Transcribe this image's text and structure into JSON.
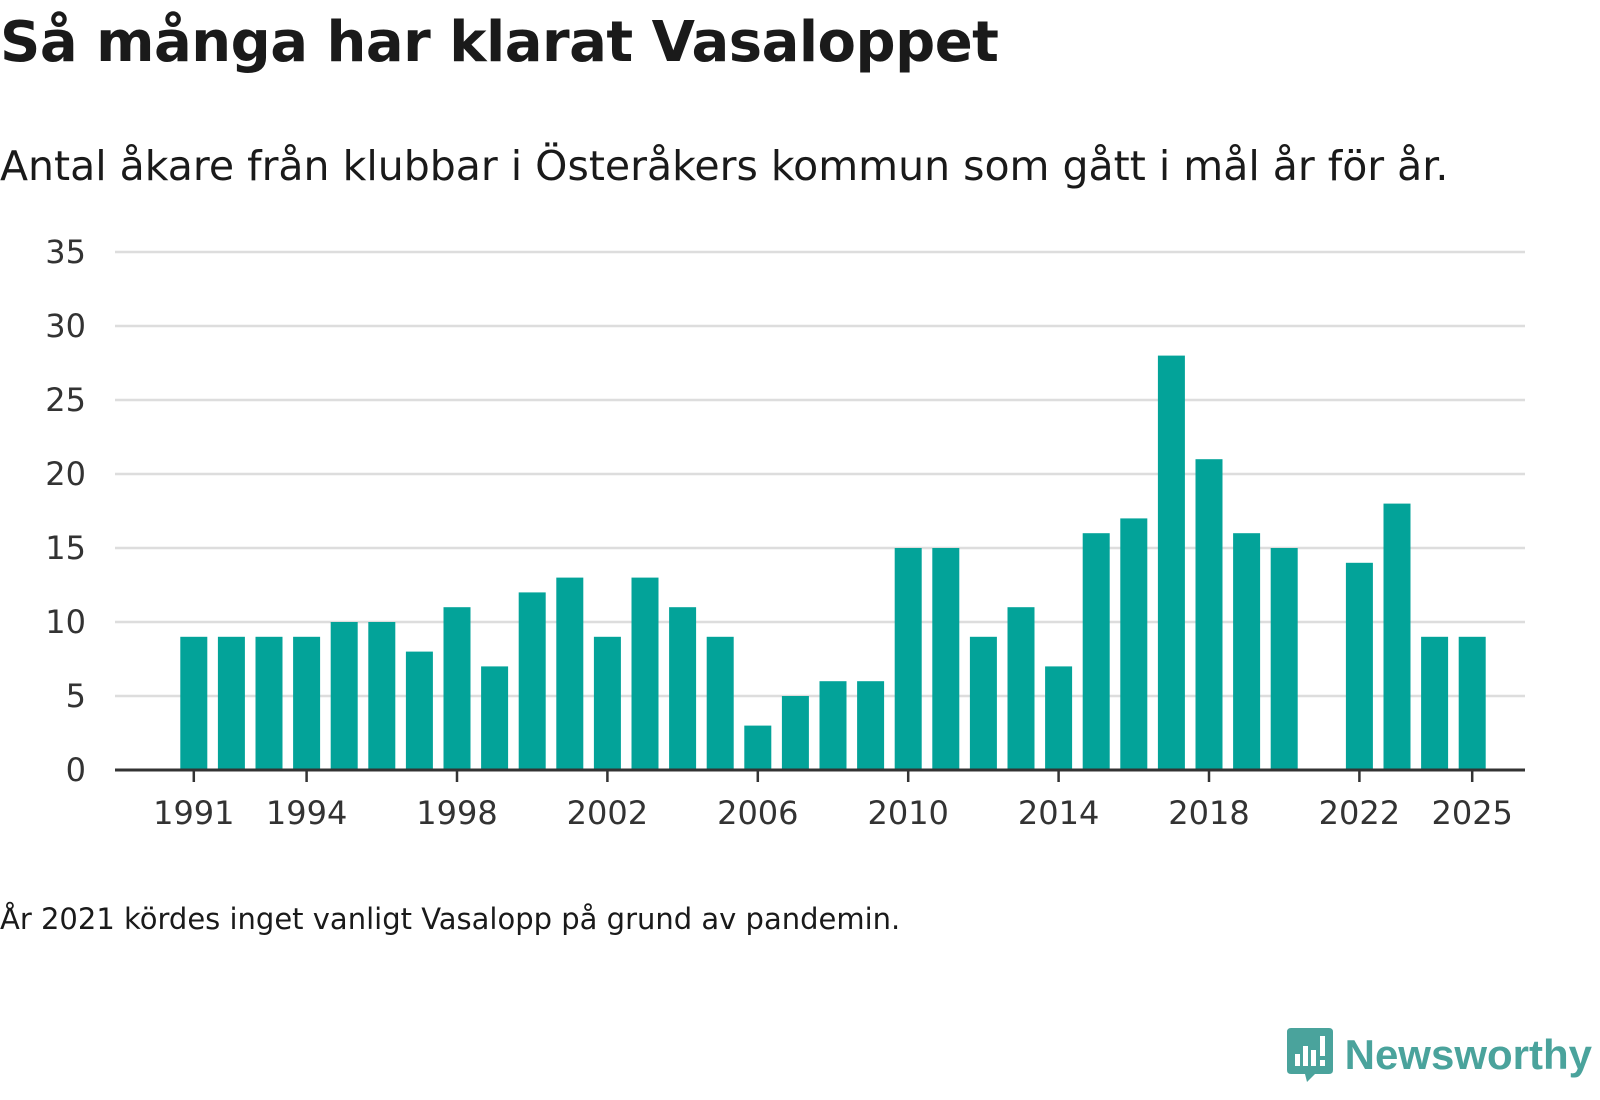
{
  "title": "Så många har klarat Vasaloppet",
  "subtitle": "Antal åkare från klubbar i Österåkers kommun som gått i mål år för år.",
  "footnote": "År 2021 kördes inget vanligt Vasalopp på grund av pandemin.",
  "brand": {
    "name": "Newsworthy",
    "icon": "newsworthy-logo-icon",
    "color": "#4aa39c"
  },
  "colors": {
    "bar": "#03a399",
    "grid": "#dddddd",
    "axis": "#333333"
  },
  "chart_data": {
    "type": "bar",
    "title": "Så många har klarat Vasaloppet",
    "xlabel": "",
    "ylabel": "",
    "ylim": [
      0,
      35
    ],
    "yticks": [
      0,
      5,
      10,
      15,
      20,
      25,
      30,
      35
    ],
    "xticks": [
      1991,
      1994,
      1998,
      2002,
      2006,
      2010,
      2014,
      2018,
      2022,
      2025
    ],
    "xrange": [
      1991,
      2025
    ],
    "grid": true,
    "categories": [
      1991,
      1992,
      1993,
      1994,
      1995,
      1996,
      1997,
      1998,
      1999,
      2000,
      2001,
      2002,
      2003,
      2004,
      2005,
      2006,
      2007,
      2008,
      2009,
      2010,
      2011,
      2012,
      2013,
      2014,
      2015,
      2016,
      2017,
      2018,
      2019,
      2020,
      2022,
      2023,
      2024,
      2025
    ],
    "values": [
      9,
      9,
      9,
      9,
      10,
      10,
      8,
      11,
      7,
      12,
      13,
      9,
      13,
      11,
      9,
      3,
      5,
      6,
      6,
      15,
      15,
      9,
      11,
      7,
      16,
      17,
      28,
      21,
      16,
      15,
      14,
      18,
      9,
      9
    ]
  }
}
